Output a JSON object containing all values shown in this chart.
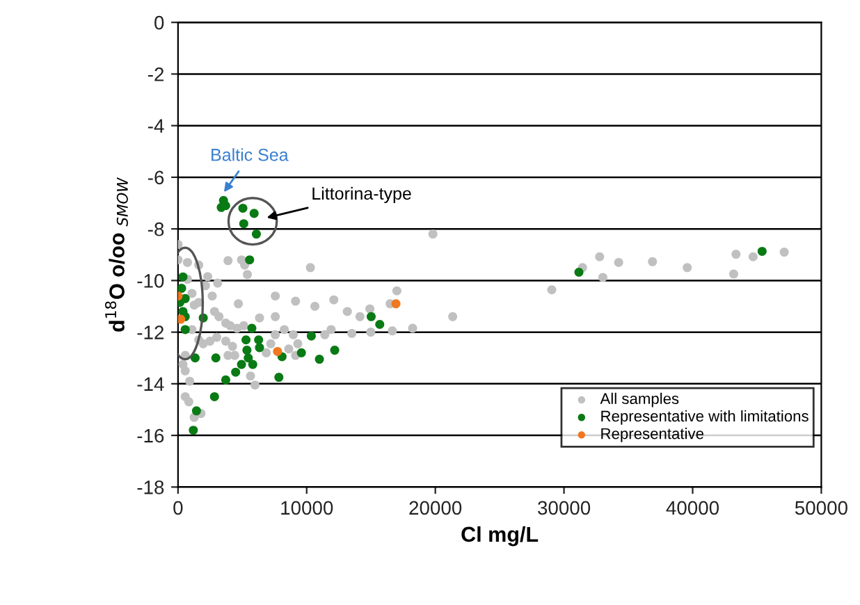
{
  "chart_data": {
    "type": "scatter",
    "xlabel": "Cl mg/L",
    "ylabel": "d$^{18}$O o/oo $_{SMOW}$",
    "xlim": [
      0,
      50000
    ],
    "xticks": [
      0,
      10000,
      20000,
      30000,
      40000,
      50000
    ],
    "ylim": [
      -18,
      0
    ],
    "yticks": [
      -18,
      -16,
      -14,
      -12,
      -10,
      -8,
      -6,
      -4,
      -2,
      0
    ],
    "grid": "y",
    "legend": "bottom right",
    "marker": "circle",
    "annotations": [
      {
        "text": "Baltic Sea",
        "x": 3400,
        "y": -6.7
      },
      {
        "text": "Littorina-type",
        "x": 6600,
        "y": -7.6
      }
    ],
    "series": [
      {
        "name": "All samples",
        "color": "#c0c0c0",
        "x": [
          0,
          0,
          735,
          1610,
          2310,
          3080,
          3885,
          4935,
          5180,
          5390,
          10290,
          7560,
          9135,
          10640,
          12110,
          13160,
          14140,
          14910,
          17010,
          16485,
          14980,
          13510,
          16660,
          18235,
          21350,
          19810,
          735,
          1085,
          1260,
          1610,
          2135,
          2660,
          2835,
          3185,
          3710,
          4060,
          4585,
          5110,
          6335,
          4690,
          1085,
          1610,
          1960,
          2485,
          3010,
          3710,
          4235,
          4410,
          3885,
          560,
          385,
          560,
          910,
          5985,
          5635,
          560,
          840,
          1260,
          1785,
          7560,
          8260,
          8960,
          9310,
          8610,
          9135,
          7210,
          6860,
          11410,
          11900,
          7560,
          29050,
          31440,
          32770,
          33020,
          34250,
          36880,
          39580,
          43190,
          43370,
          44700,
          47120
        ],
        "values": [
          -8.6,
          -9.2,
          -9.3,
          -9.4,
          -9.85,
          -10.1,
          -9.23,
          -9.2,
          -9.4,
          -9.77,
          -9.5,
          -10.6,
          -10.8,
          -11,
          -10.75,
          -11.2,
          -11.4,
          -11.1,
          -10.4,
          -10.9,
          -12,
          -12.05,
          -11.95,
          -11.85,
          -11.4,
          -8.2,
          -9.95,
          -10.5,
          -10.95,
          -10.85,
          -10.2,
          -10.6,
          -11.2,
          -11.4,
          -11.65,
          -11.75,
          -11.85,
          -11.75,
          -11.45,
          -10.9,
          -11.9,
          -12.3,
          -12.45,
          -12.35,
          -12.2,
          -12.35,
          -12.55,
          -12.9,
          -12.9,
          -12.9,
          -13.25,
          -13.5,
          -13.9,
          -14.05,
          -13.7,
          -14.5,
          -14.7,
          -15.3,
          -15.15,
          -12.1,
          -11.9,
          -12.1,
          -12.45,
          -12.65,
          -12.9,
          -12.45,
          -12.8,
          -12.1,
          -11.9,
          -11.4,
          -10.36,
          -9.5,
          -9.08,
          -9.88,
          -9.3,
          -9.27,
          -9.5,
          -9.75,
          -8.98,
          -9.08,
          -8.9
        ]
      },
      {
        "name": "Representative with limitations",
        "color": "#0a7a14",
        "x": [
          3535,
          3360,
          3700,
          5040,
          5915,
          5110,
          6090,
          5565,
          385,
          280,
          140,
          385,
          560,
          560,
          560,
          1960,
          1330,
          2940,
          3710,
          2835,
          1435,
          1190,
          5740,
          5285,
          6265,
          6335,
          5355,
          5460,
          5810,
          4935,
          4480,
          7840,
          8085,
          9590,
          10990,
          12180,
          10360,
          15015,
          15680,
          31160,
          45400
        ],
        "values": [
          -6.9,
          -7.17,
          -7.1,
          -7.2,
          -7.4,
          -7.8,
          -8.2,
          -9.2,
          -9.86,
          -10.3,
          -10.85,
          -11.2,
          -11.4,
          -11.9,
          -10.7,
          -11.45,
          -13,
          -13,
          -13.85,
          -14.5,
          -15.05,
          -15.8,
          -11.85,
          -12.3,
          -12.3,
          -12.6,
          -12.7,
          -13,
          -13.25,
          -13.25,
          -13.55,
          -13.75,
          -12.95,
          -12.8,
          -13.05,
          -12.7,
          -12.15,
          -11.4,
          -11.7,
          -9.68,
          -8.87
        ]
      },
      {
        "name": "Representative",
        "color": "#f07820",
        "x": [
          0,
          210,
          7735,
          16940
        ],
        "values": [
          -10.6,
          -11.5,
          -12.75,
          -10.9
        ]
      }
    ]
  }
}
